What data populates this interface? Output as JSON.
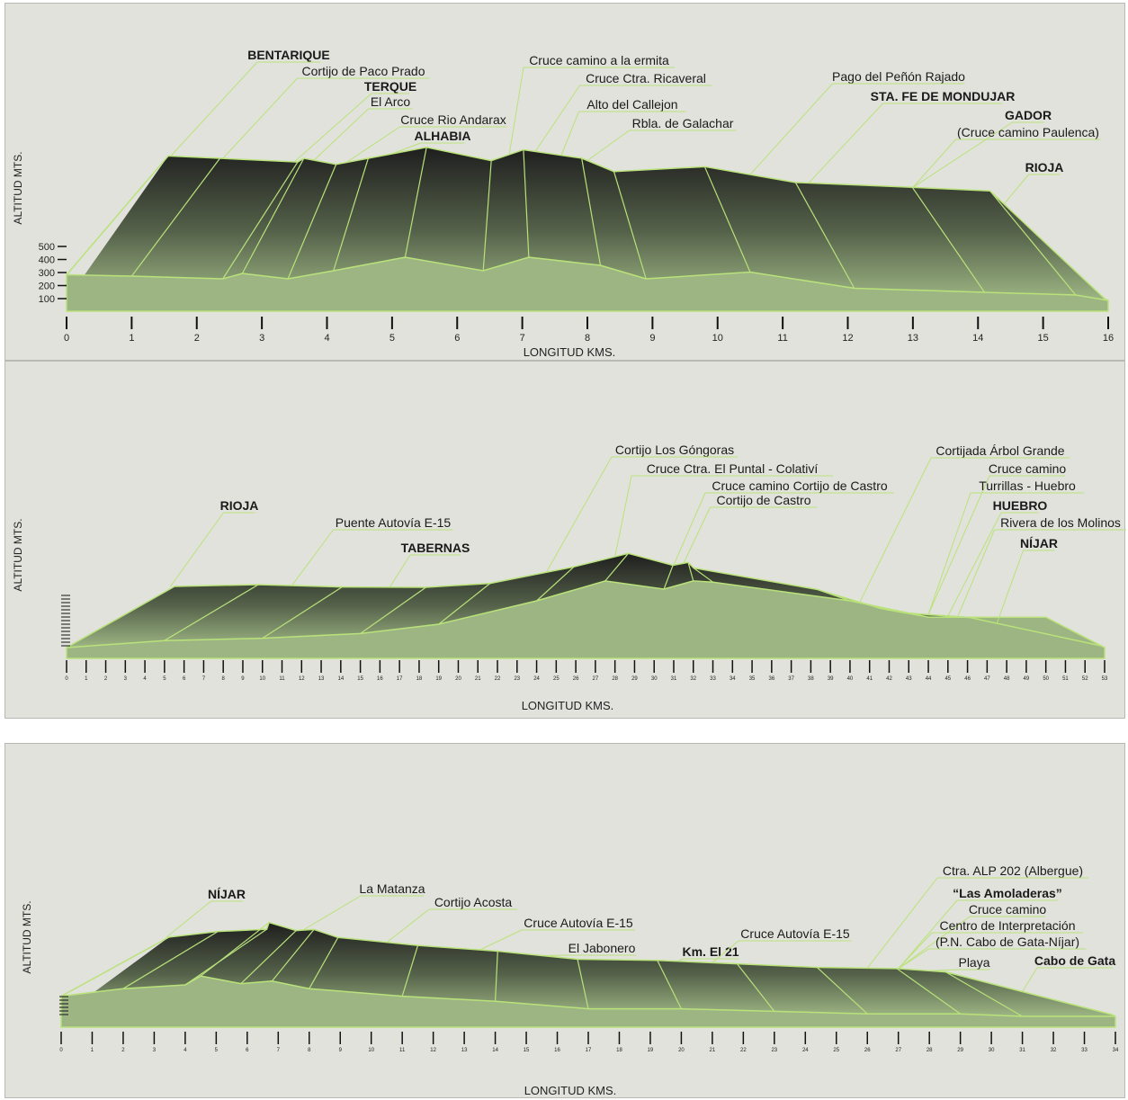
{
  "chart_data": [
    {
      "type": "area",
      "xlabel": "LONGITUD KMS.",
      "ylabel": "ALTITUD MTS.",
      "xlim": [
        0,
        16
      ],
      "x_ticks": [
        0,
        1,
        2,
        3,
        4,
        5,
        6,
        7,
        8,
        9,
        10,
        11,
        12,
        13,
        14,
        15,
        16
      ],
      "y_ticks": [
        "100",
        "200",
        "300",
        "400",
        "500"
      ],
      "ylim": [
        0,
        500
      ],
      "x": [
        0,
        1,
        2.4,
        2.7,
        3.4,
        4.1,
        5.2,
        6.4,
        7.1,
        8.2,
        8.9,
        10.5,
        12.1,
        14.1,
        15.5,
        16
      ],
      "y": [
        310,
        300,
        280,
        320,
        280,
        340,
        440,
        340,
        440,
        380,
        280,
        330,
        210,
        180,
        160,
        120
      ],
      "labels": [
        {
          "text": "BENTARIQUE",
          "bold": true,
          "km": 1.6
        },
        {
          "text": "Cortijo de Paco Prado",
          "bold": false,
          "km": 2.4
        },
        {
          "text": "TERQUE",
          "bold": true,
          "km": 3.5
        },
        {
          "text": "El Arco",
          "bold": false,
          "km": 3.8
        },
        {
          "text": "Cruce Rio Andarax",
          "bold": false,
          "km": 4.3
        },
        {
          "text": "ALHABIA",
          "bold": true,
          "km": 5.0
        },
        {
          "text": "Cruce camino a la ermita",
          "bold": false,
          "km": 6.8
        },
        {
          "text": "Cruce Ctra. Ricaveral",
          "bold": false,
          "km": 7.2
        },
        {
          "text": "Alto del Callejon",
          "bold": false,
          "km": 7.6
        },
        {
          "text": "Rbla. de Galachar",
          "bold": false,
          "km": 8.0
        },
        {
          "text": "Pago del Peñón Rajado",
          "bold": false,
          "km": 10.5
        },
        {
          "text": "STA. FE DE MONDUJAR",
          "bold": true,
          "km": 11.4
        },
        {
          "text": "GADOR",
          "bold": true,
          "km": 13.0
        },
        {
          "text": "(Cruce camino Paulenca)",
          "bold": false,
          "km": 13.0
        },
        {
          "text": "RIOJA",
          "bold": true,
          "km": 14.4
        }
      ]
    },
    {
      "type": "area",
      "xlabel": "LONGITUD KMS.",
      "ylabel": "ALTITUD MTS.",
      "xlim": [
        0,
        53
      ],
      "x_ticks": [
        0,
        1,
        2,
        3,
        4,
        5,
        6,
        7,
        8,
        9,
        10,
        11,
        12,
        13,
        14,
        15,
        16,
        17,
        18,
        19,
        20,
        21,
        22,
        23,
        24,
        25,
        26,
        27,
        28,
        29,
        30,
        31,
        32,
        33,
        34,
        35,
        36,
        37,
        38,
        39,
        40,
        41,
        42,
        43,
        44,
        45,
        46,
        47,
        48,
        49,
        50,
        51,
        52,
        53
      ],
      "x": [
        0,
        5,
        10,
        15,
        19,
        24,
        27.5,
        30.5,
        32,
        33,
        40,
        44,
        46,
        50,
        53
      ],
      "y": [
        0,
        6,
        8,
        12,
        20,
        40,
        57,
        50,
        57,
        56,
        40,
        26,
        26,
        26,
        0
      ],
      "labels": [
        {
          "text": "RIOJA",
          "bold": true,
          "km": 5.3
        },
        {
          "text": "Puente Autovía E-15",
          "bold": false,
          "km": 11.5
        },
        {
          "text": "TABERNAS",
          "bold": true,
          "km": 16.5
        },
        {
          "text": "Cortijo Los Góngoras",
          "bold": false,
          "km": 24.5
        },
        {
          "text": "Cruce Ctra. El Puntal - Colativí",
          "bold": false,
          "km": 28.0
        },
        {
          "text": "Cruce camino Cortijo de Castro",
          "bold": false,
          "km": 31.0
        },
        {
          "text": "Cortijo de Castro",
          "bold": false,
          "km": 31.5
        },
        {
          "text": "Cortijada Árbol Grande",
          "bold": false,
          "km": 40.5
        },
        {
          "text": "Cruce camino",
          "bold": false,
          "km": 44.0
        },
        {
          "text": "Turrillas - Huebro",
          "bold": false,
          "km": 44.0
        },
        {
          "text": "HUEBRO",
          "bold": true,
          "km": 45.0
        },
        {
          "text": "Rivera de los Molinos",
          "bold": false,
          "km": 45.5
        },
        {
          "text": "NÍJAR",
          "bold": true,
          "km": 47.5
        }
      ]
    },
    {
      "type": "area",
      "xlabel": "LONGITUD KMS.",
      "ylabel": "ALTITUD MTS.",
      "xlim": [
        0,
        34
      ],
      "x_ticks": [
        0,
        1,
        2,
        3,
        4,
        5,
        6,
        7,
        8,
        9,
        10,
        11,
        12,
        13,
        14,
        15,
        16,
        17,
        18,
        19,
        20,
        21,
        22,
        23,
        24,
        25,
        26,
        27,
        28,
        29,
        30,
        31,
        32,
        33,
        34
      ],
      "x": [
        0,
        2,
        4,
        4.5,
        5.8,
        6.8,
        8,
        11,
        14,
        17,
        20,
        23,
        26,
        29,
        31,
        34
      ],
      "y": [
        0,
        6,
        9,
        16,
        10,
        12,
        6,
        0,
        -4,
        -10,
        -10,
        -12,
        -14,
        -14,
        -16,
        -16
      ],
      "labels": [
        {
          "text": "NÍJAR",
          "bold": true,
          "km": 3.4
        },
        {
          "text": "La Matanza",
          "bold": false,
          "km": 7.8
        },
        {
          "text": "Cortijo Acosta",
          "bold": false,
          "km": 10.5
        },
        {
          "text": "Cruce Autovía E-15",
          "bold": false,
          "km": 13.5
        },
        {
          "text": "El Jabonero",
          "bold": false,
          "km": 15.5
        },
        {
          "text": "Km. El 21",
          "bold": true,
          "km": 19.9
        },
        {
          "text": "Cruce Autovía E-15",
          "bold": false,
          "km": 21.0
        },
        {
          "text": "Ctra. ALP 202 (Albergue)",
          "bold": false,
          "km": 26.0
        },
        {
          "text": "“Las Amoladeras”",
          "bold": true,
          "km": 27.0
        },
        {
          "text": "Cruce camino",
          "bold": false,
          "km": 27.0
        },
        {
          "text": "Centro de Interpretación",
          "bold": false,
          "km": 27.0
        },
        {
          "text": "(P.N. Cabo de Gata-Níjar)",
          "bold": false,
          "km": 27.0
        },
        {
          "text": "Playa",
          "bold": false,
          "km": 28.0
        },
        {
          "text": "Cabo de Gata",
          "bold": true,
          "km": 31.0
        }
      ]
    }
  ],
  "colors": {
    "panel_bg": "#e2e2dc",
    "outline": "#b9e27a",
    "ground": "#9db583",
    "top_dark": "#1e1e1e"
  }
}
